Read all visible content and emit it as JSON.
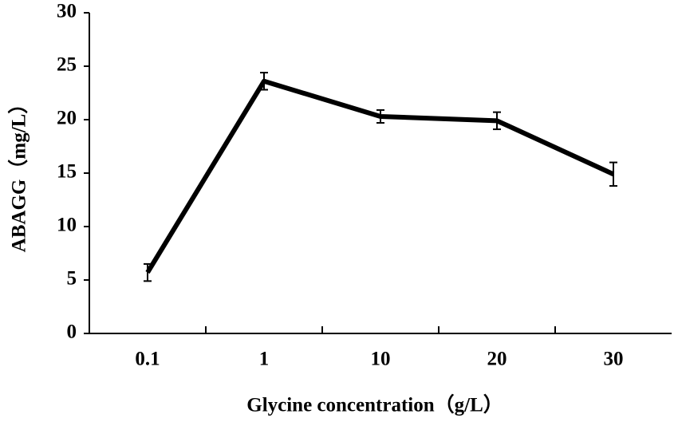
{
  "chart_data": {
    "type": "line",
    "x_label": "Glycine concentration（g/L）",
    "y_label": "ABAGG（mg/L）",
    "categories": [
      "0.1",
      "1",
      "10",
      "20",
      "30"
    ],
    "values": [
      5.7,
      23.6,
      20.3,
      19.9,
      14.9
    ],
    "errors": [
      0.8,
      0.8,
      0.6,
      0.8,
      1.1
    ],
    "color": "#000000",
    "ylim": [
      0,
      30
    ],
    "yticks": [
      0,
      5,
      10,
      15,
      20,
      25,
      30
    ],
    "grid": false
  }
}
